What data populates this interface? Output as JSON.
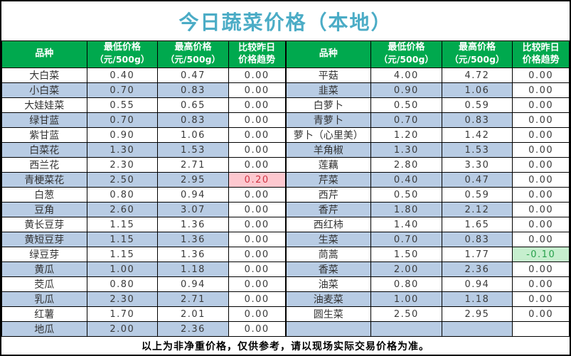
{
  "title": "今日蔬菜价格（本地）",
  "header": {
    "variety": "品种",
    "min_price": "最低价格",
    "max_price": "最高价格",
    "unit": "（元/500g）",
    "trend_line1": "比较昨日",
    "trend_line2": "价格趋势"
  },
  "left_table": {
    "rows": [
      {
        "name": "大白菜",
        "min": "0.40",
        "max": "0.47",
        "trend": "0.00",
        "trend_state": "flat"
      },
      {
        "name": "小白菜",
        "min": "0.70",
        "max": "0.83",
        "trend": "0.00",
        "trend_state": "flat"
      },
      {
        "name": "大娃娃菜",
        "min": "0.55",
        "max": "0.65",
        "trend": "0.00",
        "trend_state": "flat"
      },
      {
        "name": "绿甘蓝",
        "min": "0.70",
        "max": "0.83",
        "trend": "0.00",
        "trend_state": "flat"
      },
      {
        "name": "紫甘蓝",
        "min": "0.90",
        "max": "1.06",
        "trend": "0.00",
        "trend_state": "flat"
      },
      {
        "name": "白菜花",
        "min": "1.30",
        "max": "1.53",
        "trend": "0.00",
        "trend_state": "flat"
      },
      {
        "name": "西兰花",
        "min": "2.30",
        "max": "2.71",
        "trend": "0.00",
        "trend_state": "flat"
      },
      {
        "name": "青梗菜花",
        "min": "2.50",
        "max": "2.95",
        "trend": "0.20",
        "trend_state": "up"
      },
      {
        "name": "白葱",
        "min": "0.80",
        "max": "0.94",
        "trend": "0.00",
        "trend_state": "flat"
      },
      {
        "name": "豆角",
        "min": "2.60",
        "max": "3.07",
        "trend": "0.00",
        "trend_state": "flat"
      },
      {
        "name": "黄长豆芽",
        "min": "1.15",
        "max": "1.36",
        "trend": "0.00",
        "trend_state": "flat"
      },
      {
        "name": "黄短豆芽",
        "min": "1.15",
        "max": "1.36",
        "trend": "0.00",
        "trend_state": "flat"
      },
      {
        "name": "绿豆芽",
        "min": "1.15",
        "max": "1.36",
        "trend": "0.00",
        "trend_state": "flat"
      },
      {
        "name": "黄瓜",
        "min": "1.00",
        "max": "1.18",
        "trend": "0.00",
        "trend_state": "flat"
      },
      {
        "name": "茭瓜",
        "min": "0.80",
        "max": "0.94",
        "trend": "0.00",
        "trend_state": "flat"
      },
      {
        "name": "乳瓜",
        "min": "2.30",
        "max": "2.71",
        "trend": "0.00",
        "trend_state": "flat"
      },
      {
        "name": "红薯",
        "min": "1.70",
        "max": "2.01",
        "trend": "0.00",
        "trend_state": "flat"
      },
      {
        "name": "地瓜",
        "min": "2.00",
        "max": "2.36",
        "trend": "0.00",
        "trend_state": "flat"
      }
    ]
  },
  "right_table": {
    "rows": [
      {
        "name": "平菇",
        "min": "4.00",
        "max": "4.72",
        "trend": "0.00",
        "trend_state": "flat"
      },
      {
        "name": "韭菜",
        "min": "0.90",
        "max": "1.06",
        "trend": "0.00",
        "trend_state": "flat"
      },
      {
        "name": "白萝卜",
        "min": "0.50",
        "max": "0.59",
        "trend": "0.00",
        "trend_state": "flat"
      },
      {
        "name": "青萝卜",
        "min": "0.70",
        "max": "0.83",
        "trend": "0.00",
        "trend_state": "flat"
      },
      {
        "name": "萝卜（心里美）",
        "min": "1.20",
        "max": "1.42",
        "trend": "0.00",
        "trend_state": "flat"
      },
      {
        "name": "羊角椒",
        "min": "1.30",
        "max": "1.53",
        "trend": "0.00",
        "trend_state": "flat"
      },
      {
        "name": "莲藕",
        "min": "2.80",
        "max": "3.30",
        "trend": "0.00",
        "trend_state": "flat"
      },
      {
        "name": "芹菜",
        "min": "0.40",
        "max": "0.47",
        "trend": "0.00",
        "trend_state": "flat"
      },
      {
        "name": "西芹",
        "min": "0.50",
        "max": "0.59",
        "trend": "0.00",
        "trend_state": "flat"
      },
      {
        "name": "香芹",
        "min": "1.80",
        "max": "2.12",
        "trend": "0.00",
        "trend_state": "flat"
      },
      {
        "name": "西红柿",
        "min": "1.40",
        "max": "1.65",
        "trend": "0.00",
        "trend_state": "flat"
      },
      {
        "name": "生菜",
        "min": "0.70",
        "max": "0.83",
        "trend": "0.00",
        "trend_state": "flat"
      },
      {
        "name": "茼蒿",
        "min": "1.50",
        "max": "1.77",
        "trend": "-0.10",
        "trend_state": "down"
      },
      {
        "name": "香菜",
        "min": "2.00",
        "max": "2.36",
        "trend": "0.00",
        "trend_state": "flat"
      },
      {
        "name": "油菜",
        "min": "0.80",
        "max": "0.94",
        "trend": "0.00",
        "trend_state": "flat"
      },
      {
        "name": "油麦菜",
        "min": "1.00",
        "max": "1.18",
        "trend": "0.00",
        "trend_state": "flat"
      },
      {
        "name": "圆生菜",
        "min": "2.50",
        "max": "2.95",
        "trend": "0.00",
        "trend_state": "flat"
      },
      {
        "name": "",
        "min": "",
        "max": "",
        "trend": "",
        "trend_state": "flat"
      }
    ]
  },
  "footer": "以上为非净重价格，仅供参考，请以现场实际交易价格为准。",
  "colors": {
    "title": "#4BACC6",
    "header_bg": "#00A94E",
    "stripe_bg": "#B8CCE4",
    "trend_up_bg": "#FDC8CF",
    "trend_up_text": "#D03545",
    "trend_down_bg": "#C6EFCE",
    "trend_down_text": "#28A04C"
  }
}
